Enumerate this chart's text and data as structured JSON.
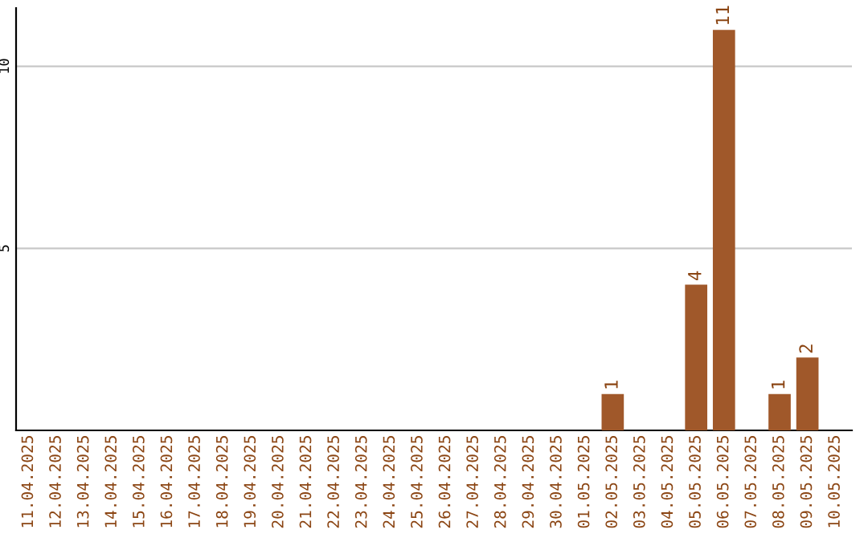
{
  "chart_data": {
    "type": "bar",
    "categories": [
      "11.04.2025",
      "12.04.2025",
      "13.04.2025",
      "14.04.2025",
      "15.04.2025",
      "16.04.2025",
      "17.04.2025",
      "18.04.2025",
      "19.04.2025",
      "20.04.2025",
      "21.04.2025",
      "22.04.2025",
      "23.04.2025",
      "24.04.2025",
      "25.04.2025",
      "26.04.2025",
      "27.04.2025",
      "28.04.2025",
      "29.04.2025",
      "30.04.2025",
      "01.05.2025",
      "02.05.2025",
      "03.05.2025",
      "04.05.2025",
      "05.05.2025",
      "06.05.2025",
      "07.05.2025",
      "08.05.2025",
      "09.05.2025",
      "10.05.2025"
    ],
    "values": [
      0,
      0,
      0,
      0,
      0,
      0,
      0,
      0,
      0,
      0,
      0,
      0,
      0,
      0,
      0,
      0,
      0,
      0,
      0,
      0,
      0,
      1,
      0,
      0,
      4,
      11,
      0,
      1,
      2,
      0
    ],
    "value_labels": [
      null,
      null,
      null,
      null,
      null,
      null,
      null,
      null,
      null,
      null,
      null,
      null,
      null,
      null,
      null,
      null,
      null,
      null,
      null,
      null,
      null,
      "1",
      null,
      null,
      "4",
      "11",
      null,
      "1",
      "2",
      null
    ],
    "color": "#a0582a",
    "ylim": [
      0,
      11.6
    ],
    "yticks": [
      5,
      10
    ],
    "grid": "y"
  }
}
